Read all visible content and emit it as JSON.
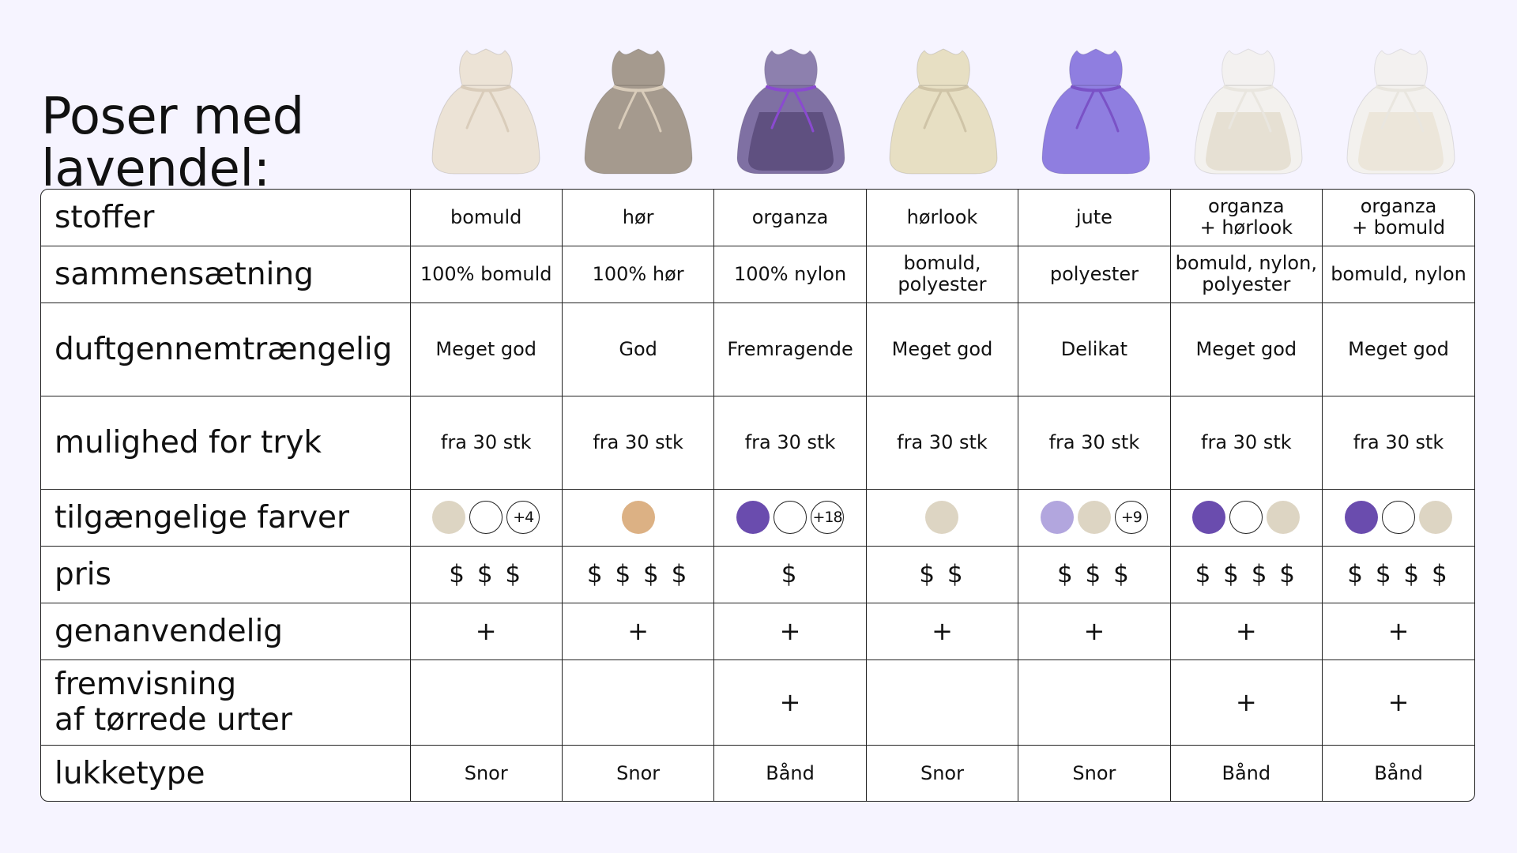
{
  "title": "Poser med\nlavendel:",
  "bags": [
    {
      "icon": "cotton-bag-icon",
      "fabric": "#ece3d6",
      "tie": "#d9ccba",
      "content": ""
    },
    {
      "icon": "linen-bag-icon",
      "fabric": "#a59a8e",
      "tie": "#d9ccba",
      "content": ""
    },
    {
      "icon": "organza-lavender-bag-icon",
      "fabric": "#6b5a93",
      "tie": "#8a4ad0",
      "content": "#5f5080"
    },
    {
      "icon": "linen-look-bag-icon",
      "fabric": "#e7dfc3",
      "tie": "#cfc4a7",
      "content": ""
    },
    {
      "icon": "jute-bag-icon",
      "fabric": "#8f7ee0",
      "tie": "#7a52c6",
      "content": ""
    },
    {
      "icon": "organza-linen-look-bag-icon",
      "fabric": "#f3f1ec",
      "tie": "#e9e6df",
      "content": "#e6e0d3"
    },
    {
      "icon": "organza-cotton-bag-icon",
      "fabric": "#f3f1ec",
      "tie": "#e9e6df",
      "content": "#ece6da"
    }
  ],
  "rows": {
    "stoffer": {
      "label": "stoffer",
      "cells": [
        "bomuld",
        "hør",
        "organza",
        "hørlook",
        "jute",
        "organza\n+ hørlook",
        "organza\n+ bomuld"
      ]
    },
    "sammensaetning": {
      "label": "sammensætning",
      "cells": [
        "100% bomuld",
        "100% hør",
        "100% nylon",
        "bomuld,\npolyester",
        "polyester",
        "bomuld, nylon,\npolyester",
        "bomuld, nylon"
      ]
    },
    "duft": {
      "label": "duftgennemtrængelig",
      "cells": [
        "Meget god",
        "God",
        "Fremragende",
        "Meget god",
        "Delikat",
        "Meget god",
        "Meget god"
      ]
    },
    "tryk": {
      "label": "mulighed for tryk",
      "cells": [
        "fra 30 stk",
        "fra 30 stk",
        "fra 30 stk",
        "fra 30 stk",
        "fra 30 stk",
        "fra 30 stk",
        "fra 30 stk"
      ]
    },
    "farver": {
      "label": "tilgængelige farver",
      "cells": [
        [
          {
            "color": "#ddd5c3"
          },
          {
            "color": "#ffffff",
            "outline": true
          },
          {
            "text": "+4",
            "outline": true
          }
        ],
        [
          {
            "color": "#dcb184"
          }
        ],
        [
          {
            "color": "#6a4cae"
          },
          {
            "color": "#ffffff",
            "outline": true
          },
          {
            "text": "+18",
            "outline": true
          }
        ],
        [
          {
            "color": "#ddd5c3"
          }
        ],
        [
          {
            "color": "#b2a6de"
          },
          {
            "color": "#ddd5c3"
          },
          {
            "text": "+9",
            "outline": true
          }
        ],
        [
          {
            "color": "#6a4cae"
          },
          {
            "color": "#ffffff",
            "outline": true
          },
          {
            "color": "#ddd5c3"
          }
        ],
        [
          {
            "color": "#6a4cae"
          },
          {
            "color": "#ffffff",
            "outline": true
          },
          {
            "color": "#ddd5c3"
          }
        ]
      ]
    },
    "pris": {
      "label": "pris",
      "cells": [
        "$ $ $",
        "$ $ $ $",
        "$",
        "$ $",
        "$ $ $",
        "$ $ $ $",
        "$ $ $ $"
      ]
    },
    "genanvendelig": {
      "label": "genanvendelig",
      "cells": [
        "+",
        "+",
        "+",
        "+",
        "+",
        "+",
        "+"
      ]
    },
    "fremvisning": {
      "label": "fremvisning\naf tørrede urter",
      "cells": [
        "",
        "",
        "+",
        "",
        "",
        "+",
        "+"
      ]
    },
    "lukketype": {
      "label": "lukketype",
      "cells": [
        "Snor",
        "Snor",
        "Bånd",
        "Snor",
        "Snor",
        "Bånd",
        "Bånd"
      ]
    }
  }
}
